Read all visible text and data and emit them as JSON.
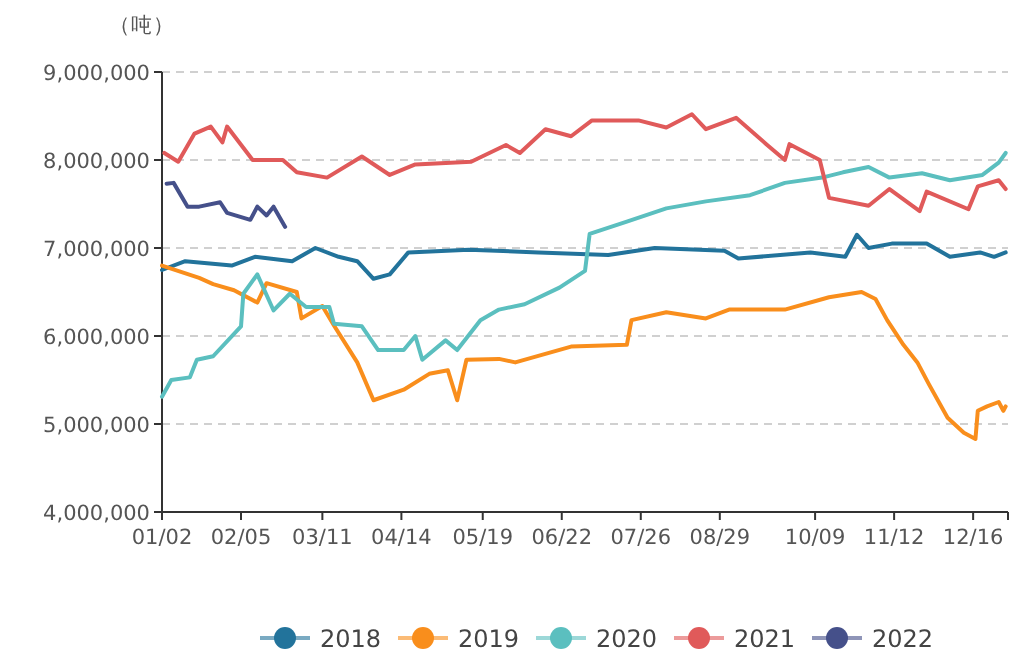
{
  "chart_data": {
    "type": "line",
    "ylabel": "（吨）",
    "xlim": [
      "--01-02",
      "--12-31"
    ],
    "ylim": [
      4000000,
      9000000
    ],
    "xticks": [
      {
        "value": "--01-02",
        "label": "01/02"
      },
      {
        "value": "--02-05",
        "label": "02/05"
      },
      {
        "value": "--03-11",
        "label": "03/11"
      },
      {
        "value": "--04-14",
        "label": "04/14"
      },
      {
        "value": "--05-19",
        "label": "05/19"
      },
      {
        "value": "--06-22",
        "label": "06/22"
      },
      {
        "value": "--07-26",
        "label": "07/26"
      },
      {
        "value": "--08-29",
        "label": "08/29"
      },
      {
        "value": "--10-09",
        "label": "10/09"
      },
      {
        "value": "--11-12",
        "label": "11/12"
      },
      {
        "value": "--12-16",
        "label": "12/16"
      }
    ],
    "yticks": [
      {
        "value": 4000000,
        "label": "4,000,000"
      },
      {
        "value": 5000000,
        "label": "5,000,000"
      },
      {
        "value": 6000000,
        "label": "6,000,000"
      },
      {
        "value": 7000000,
        "label": "7,000,000"
      },
      {
        "value": 8000000,
        "label": "8,000,000"
      },
      {
        "value": 9000000,
        "label": "9,000,000"
      }
    ],
    "grid": "y",
    "legend": "bottom",
    "series": [
      {
        "name": "2018",
        "color": "#22739b",
        "x": [
          "--01-02",
          "--01-12",
          "--02-01",
          "--02-11",
          "--02-27",
          "--03-08",
          "--03-18",
          "--03-26",
          "--04-02",
          "--04-09",
          "--04-17",
          "--05-13",
          "--06-12",
          "--07-12",
          "--08-01",
          "--08-31",
          "--09-06",
          "--10-07",
          "--10-22",
          "--10-27",
          "--11-01",
          "--11-11",
          "--11-26",
          "--12-06",
          "--12-19",
          "--12-25",
          "--12-30"
        ],
        "values": [
          6750000,
          6850000,
          6800000,
          6900000,
          6850000,
          7000000,
          6900000,
          6850000,
          6650000,
          6700000,
          6950000,
          6980000,
          6950000,
          6920000,
          7000000,
          6970000,
          6880000,
          6950000,
          6900000,
          7150000,
          7000000,
          7050000,
          7050000,
          6900000,
          6950000,
          6900000,
          6950000
        ]
      },
      {
        "name": "2019",
        "color": "#f98e1c",
        "x": [
          "--01-02",
          "--01-18",
          "--01-24",
          "--02-02",
          "--02-12",
          "--02-16",
          "--02-29",
          "--03-02",
          "--03-11",
          "--03-16",
          "--03-26",
          "--04-02",
          "--04-15",
          "--04-26",
          "--05-04",
          "--05-08",
          "--05-12",
          "--05-26",
          "--06-02",
          "--06-26",
          "--07-20",
          "--07-22",
          "--08-06",
          "--08-23",
          "--09-02",
          "--09-26",
          "--10-15",
          "--10-29",
          "--11-04",
          "--11-09",
          "--11-16",
          "--11-22",
          "--11-27",
          "--12-05",
          "--12-12",
          "--12-17",
          "--12-18",
          "--12-22",
          "--12-27",
          "--12-29",
          "--12-30"
        ],
        "values": [
          6800000,
          6660000,
          6590000,
          6520000,
          6380000,
          6600000,
          6500000,
          6200000,
          6340000,
          6120000,
          5700000,
          5270000,
          5390000,
          5570000,
          5610000,
          5270000,
          5730000,
          5740000,
          5700000,
          5880000,
          5900000,
          6180000,
          6270000,
          6200000,
          6300000,
          6300000,
          6440000,
          6500000,
          6420000,
          6180000,
          5900000,
          5700000,
          5450000,
          5070000,
          4900000,
          4830000,
          5150000,
          5200000,
          5250000,
          5150000,
          5200000
        ]
      },
      {
        "name": "2020",
        "color": "#5bbfbf",
        "x": [
          "--01-02",
          "--01-06",
          "--01-14",
          "--01-17",
          "--01-24",
          "--02-05",
          "--02-06",
          "--02-12",
          "--02-19",
          "--02-26",
          "--03-04",
          "--03-14",
          "--03-16",
          "--03-28",
          "--04-04",
          "--04-15",
          "--04-20",
          "--04-23",
          "--05-03",
          "--05-08",
          "--05-18",
          "--05-26",
          "--06-06",
          "--06-21",
          "--07-02",
          "--07-04",
          "--07-20",
          "--08-06",
          "--08-23",
          "--09-11",
          "--09-26",
          "--10-12",
          "--10-21",
          "--11-01",
          "--11-10",
          "--11-24",
          "--12-06",
          "--12-20",
          "--12-27",
          "--12-30"
        ],
        "values": [
          5310000,
          5500000,
          5530000,
          5730000,
          5770000,
          6110000,
          6480000,
          6700000,
          6290000,
          6480000,
          6330000,
          6330000,
          6140000,
          6110000,
          5840000,
          5840000,
          6000000,
          5730000,
          5950000,
          5840000,
          6180000,
          6300000,
          6360000,
          6550000,
          6740000,
          7160000,
          7300000,
          7450000,
          7530000,
          7600000,
          7740000,
          7800000,
          7860000,
          7920000,
          7800000,
          7850000,
          7770000,
          7830000,
          7970000,
          8080000
        ]
      },
      {
        "name": "2021",
        "color": "#e05a5a",
        "x": [
          "--01-03",
          "--01-09",
          "--01-16",
          "--01-23",
          "--01-28",
          "--01-30",
          "--02-10",
          "--02-23",
          "--02-29",
          "--03-13",
          "--03-28",
          "--04-09",
          "--04-20",
          "--05-14",
          "--05-29",
          "--06-04",
          "--06-15",
          "--06-26",
          "--07-05",
          "--07-25",
          "--08-06",
          "--08-17",
          "--08-23",
          "--09-05",
          "--09-18",
          "--09-26",
          "--09-28",
          "--10-11",
          "--10-15",
          "--11-01",
          "--11-10",
          "--11-23",
          "--11-26",
          "--12-14",
          "--12-18",
          "--12-27",
          "--12-30"
        ],
        "values": [
          8080000,
          7980000,
          8300000,
          8380000,
          8200000,
          8380000,
          8000000,
          8000000,
          7860000,
          7800000,
          8040000,
          7830000,
          7950000,
          7980000,
          8170000,
          8080000,
          8350000,
          8270000,
          8450000,
          8450000,
          8370000,
          8520000,
          8350000,
          8480000,
          8180000,
          8000000,
          8180000,
          8000000,
          7570000,
          7480000,
          7670000,
          7420000,
          7640000,
          7440000,
          7700000,
          7770000,
          7670000
        ]
      },
      {
        "name": "2022",
        "color": "#45508a",
        "x": [
          "--01-04",
          "--01-07",
          "--01-13",
          "--01-18",
          "--01-27",
          "--01-30",
          "--02-09",
          "--02-12",
          "--02-16",
          "--02-19",
          "--02-24"
        ],
        "values": [
          7730000,
          7740000,
          7470000,
          7470000,
          7520000,
          7400000,
          7320000,
          7470000,
          7370000,
          7470000,
          7240000
        ]
      }
    ]
  }
}
